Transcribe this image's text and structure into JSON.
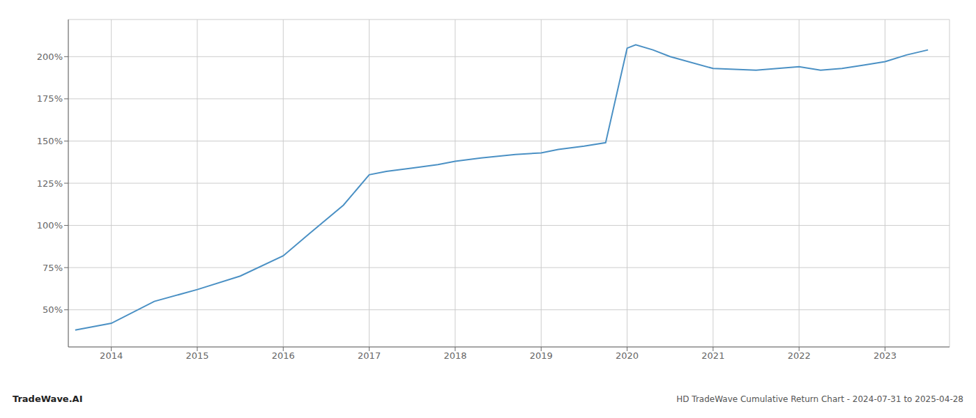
{
  "chart_data": {
    "type": "line",
    "title": "HD TradeWave Cumulative Return Chart - 2024-07-31 to 2025-04-28",
    "annotations": [
      "TradeWave.AI"
    ],
    "x": [
      2013.58,
      2014.0,
      2014.5,
      2015.0,
      2015.5,
      2016.0,
      2016.3,
      2016.7,
      2017.0,
      2017.2,
      2017.5,
      2017.8,
      2018.0,
      2018.3,
      2018.5,
      2018.7,
      2019.0,
      2019.2,
      2019.5,
      2019.75,
      2020.0,
      2020.1,
      2020.3,
      2020.5,
      2021.0,
      2021.5,
      2022.0,
      2022.25,
      2022.5,
      2022.75,
      2023.0,
      2023.25,
      2023.5
    ],
    "values": [
      38,
      42,
      55,
      62,
      70,
      82,
      95,
      112,
      130,
      132,
      134,
      136,
      138,
      140,
      141,
      142,
      143,
      145,
      147,
      149,
      205,
      207,
      204,
      200,
      193,
      192,
      194,
      192,
      193,
      195,
      197,
      201,
      204
    ],
    "color": "#4a90c4",
    "xlim": [
      2013.5,
      2023.75
    ],
    "ylim": [
      28,
      222
    ],
    "xticks": [
      2014,
      2015,
      2016,
      2017,
      2018,
      2019,
      2020,
      2021,
      2022,
      2023
    ],
    "yticks": [
      {
        "value": 50,
        "label": "50%"
      },
      {
        "value": 75,
        "label": "75%"
      },
      {
        "value": 100,
        "label": "100%"
      },
      {
        "value": 125,
        "label": "125%"
      },
      {
        "value": 150,
        "label": "150%"
      },
      {
        "value": 175,
        "label": "175%"
      },
      {
        "value": 200,
        "label": "200%"
      }
    ],
    "grid": true
  }
}
